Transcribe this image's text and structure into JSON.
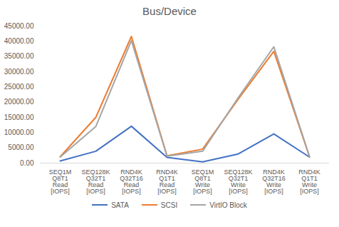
{
  "chart_data": {
    "type": "line",
    "title": "Bus/Device",
    "categories": [
      "SEQ1M Q8T1 Read [IOPS]",
      "SEQ128K Q32T1 Read [IOPS]",
      "RND4K Q32T16 Read [IOPS]",
      "RND4K Q1T1 Read [IOPS]",
      "SEQ1M Q8T1 Write [IOPS]",
      "SEQ128K Q32T1 Write [IOPS]",
      "RND4K Q32T16 Write [IOPS]",
      "RND4K Q1T1 Write [IOPS]"
    ],
    "series": [
      {
        "name": "SATA",
        "color": "#4472c4",
        "values": [
          700,
          3900,
          12100,
          1900,
          400,
          3000,
          9600,
          2000
        ]
      },
      {
        "name": "SCSI",
        "color": "#ed7d31",
        "values": [
          2100,
          15000,
          41600,
          2400,
          4600,
          21000,
          36700,
          2100
        ]
      },
      {
        "name": "VirtIO Block",
        "color": "#a5a5a5",
        "values": [
          2000,
          12000,
          40200,
          2300,
          3900,
          21500,
          38200,
          2200
        ]
      }
    ],
    "ylim": [
      0,
      45000
    ],
    "yticks": [
      {
        "value": 0,
        "label": "0.00"
      },
      {
        "value": 5000,
        "label": "5000.00"
      },
      {
        "value": 10000,
        "label": "10000.00"
      },
      {
        "value": 15000,
        "label": "15000.00"
      },
      {
        "value": 20000,
        "label": "20000.00"
      },
      {
        "value": 25000,
        "label": "25000.00"
      },
      {
        "value": 30000,
        "label": "30000.00"
      },
      {
        "value": 35000,
        "label": "35000.00"
      },
      {
        "value": 40000,
        "label": "40000.00"
      },
      {
        "value": 45000,
        "label": "45000.00"
      }
    ],
    "grid": false,
    "legend": "bottom"
  }
}
